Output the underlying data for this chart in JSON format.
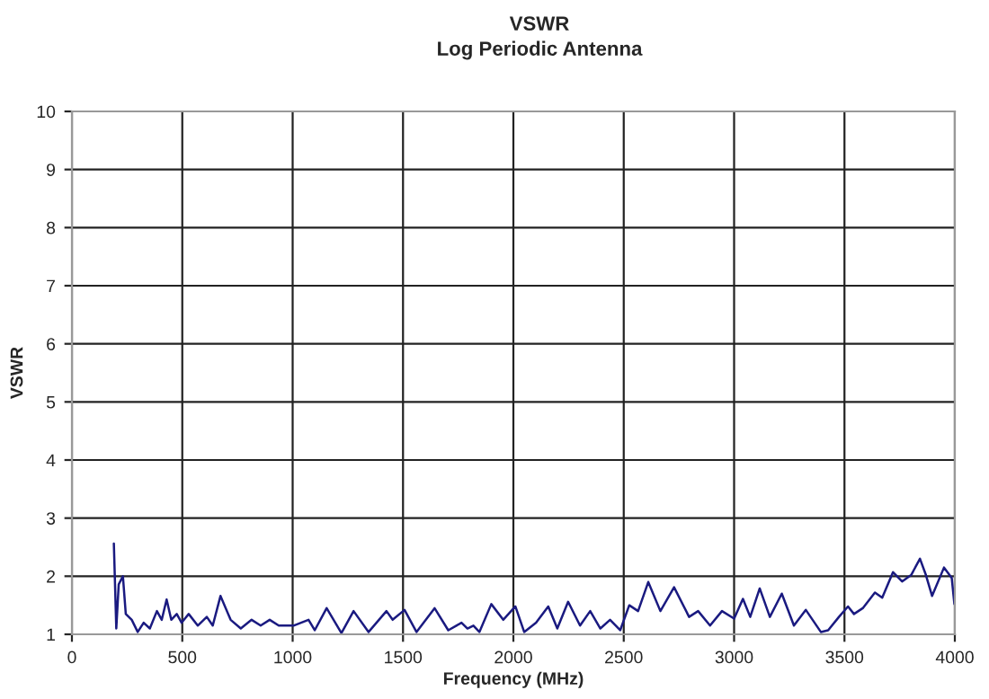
{
  "chart_data": {
    "type": "line",
    "title": "VSWR",
    "subtitle": "Log Periodic Antenna",
    "xlabel": "Frequency (MHz)",
    "ylabel": "VSWR",
    "xlim": [
      0,
      4000
    ],
    "xticks": [
      0,
      500,
      1000,
      1500,
      2000,
      2500,
      3000,
      3500,
      4000
    ],
    "ylim": [
      1,
      10
    ],
    "yticks": [
      1,
      2,
      3,
      4,
      5,
      6,
      7,
      8,
      9,
      10
    ],
    "grid": true,
    "marker": "none",
    "line_style": "solid",
    "series": [
      {
        "color": "#1a1a80",
        "x": [
          190,
          201,
          212,
          231,
          244,
          271,
          298,
          325,
          353,
          385,
          407,
          429,
          450,
          475,
          497,
          529,
          570,
          611,
          638,
          673,
          719,
          765,
          814,
          855,
          896,
          937,
          1004,
          1072,
          1100,
          1154,
          1221,
          1276,
          1344,
          1425,
          1453,
          1507,
          1561,
          1643,
          1705,
          1765,
          1792,
          1819,
          1846,
          1900,
          1954,
          2009,
          2049,
          2103,
          2158,
          2199,
          2248,
          2302,
          2348,
          2394,
          2438,
          2484,
          2525,
          2565,
          2611,
          2666,
          2728,
          2796,
          2837,
          2891,
          2945,
          3000,
          3040,
          3073,
          3116,
          3162,
          3216,
          3271,
          3325,
          3393,
          3426,
          3475,
          3516,
          3543,
          3583,
          3638,
          3671,
          3720,
          3761,
          3802,
          3842,
          3869,
          3897,
          3951,
          3986,
          3998
        ],
        "values": [
          2.56,
          1.1,
          1.86,
          2.0,
          1.35,
          1.25,
          1.04,
          1.2,
          1.1,
          1.4,
          1.25,
          1.6,
          1.25,
          1.35,
          1.2,
          1.35,
          1.15,
          1.3,
          1.15,
          1.66,
          1.25,
          1.1,
          1.25,
          1.15,
          1.25,
          1.15,
          1.15,
          1.25,
          1.07,
          1.45,
          1.02,
          1.4,
          1.04,
          1.4,
          1.25,
          1.42,
          1.04,
          1.45,
          1.07,
          1.2,
          1.1,
          1.15,
          1.04,
          1.52,
          1.25,
          1.48,
          1.04,
          1.2,
          1.48,
          1.1,
          1.56,
          1.15,
          1.4,
          1.1,
          1.25,
          1.07,
          1.5,
          1.4,
          1.9,
          1.4,
          1.81,
          1.3,
          1.4,
          1.15,
          1.4,
          1.27,
          1.61,
          1.3,
          1.79,
          1.3,
          1.7,
          1.15,
          1.42,
          1.04,
          1.07,
          1.3,
          1.48,
          1.35,
          1.45,
          1.72,
          1.63,
          2.07,
          1.91,
          2.02,
          2.3,
          2.02,
          1.66,
          2.15,
          1.97,
          1.52
        ]
      }
    ]
  }
}
